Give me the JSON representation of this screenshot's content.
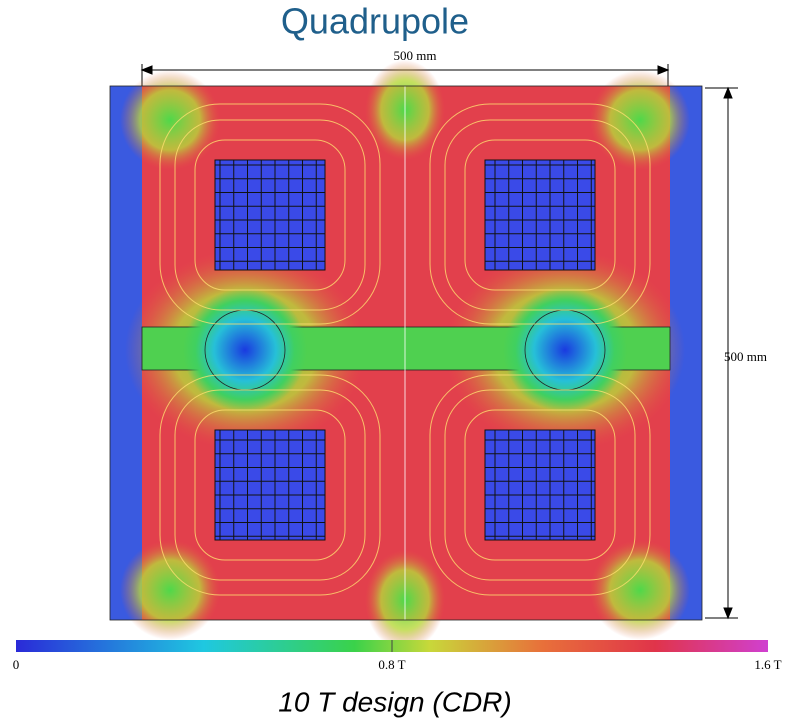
{
  "title": "Quadrupole",
  "dimensions": {
    "width": "500 mm",
    "height": "500 mm"
  },
  "colorbar": {
    "labels": [
      "0",
      "0.8 T",
      "1.6 T"
    ]
  },
  "caption": "10 T design (CDR)"
}
